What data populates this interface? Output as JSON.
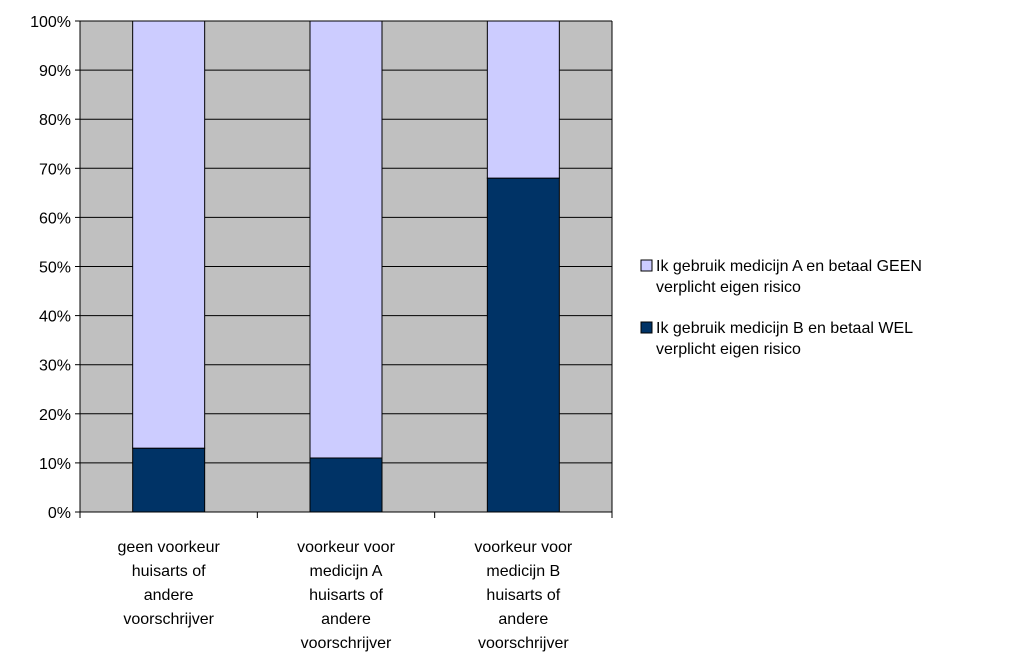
{
  "chart_data": {
    "type": "stacked_bar_100",
    "categories": [
      "geen voorkeur\nhuisarts of\nandere\nvoorschrijver",
      "voorkeur voor\nmedicijn A\nhuisarts of\nandere\nvoorschrijver",
      "voorkeur voor\nmedicijn B\nhuisarts of\nandere\nvoorschrijver"
    ],
    "series": [
      {
        "name": "Ik gebruik medicijn A en betaal GEEN\nverplicht eigen risico",
        "color": "#ccccff",
        "values": [
          87,
          89,
          32
        ]
      },
      {
        "name": "Ik gebruik medicijn B en betaal WEL\nverplicht eigen risico",
        "color": "#003366",
        "values": [
          13,
          11,
          68
        ]
      }
    ],
    "ylim": [
      0,
      100
    ],
    "yticks": [
      {
        "value": 0,
        "label": "0%"
      },
      {
        "value": 10,
        "label": "10%"
      },
      {
        "value": 20,
        "label": "20%"
      },
      {
        "value": 30,
        "label": "30%"
      },
      {
        "value": 40,
        "label": "40%"
      },
      {
        "value": 50,
        "label": "50%"
      },
      {
        "value": 60,
        "label": "60%"
      },
      {
        "value": 70,
        "label": "70%"
      },
      {
        "value": 80,
        "label": "80%"
      },
      {
        "value": 90,
        "label": "90%"
      },
      {
        "value": 100,
        "label": "100%"
      }
    ],
    "grid": true,
    "plot_background": "#c0c0c0",
    "legend": "right"
  }
}
